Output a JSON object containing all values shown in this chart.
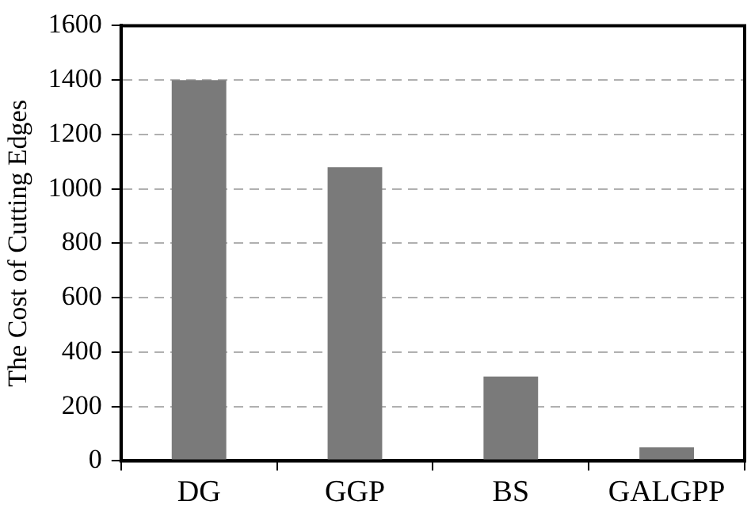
{
  "chart_data": {
    "type": "bar",
    "ylabel": "The Cost of Cutting Edges",
    "categories": [
      "DG",
      "GGP",
      "BS",
      "GALGPP"
    ],
    "values": [
      1400,
      1080,
      310,
      50
    ],
    "color": "#7a7a7a",
    "ylim": [
      0,
      1600
    ],
    "yticks": [
      0,
      200,
      400,
      600,
      800,
      1000,
      1200,
      1400,
      1600
    ],
    "grid": "y",
    "legend": false
  }
}
